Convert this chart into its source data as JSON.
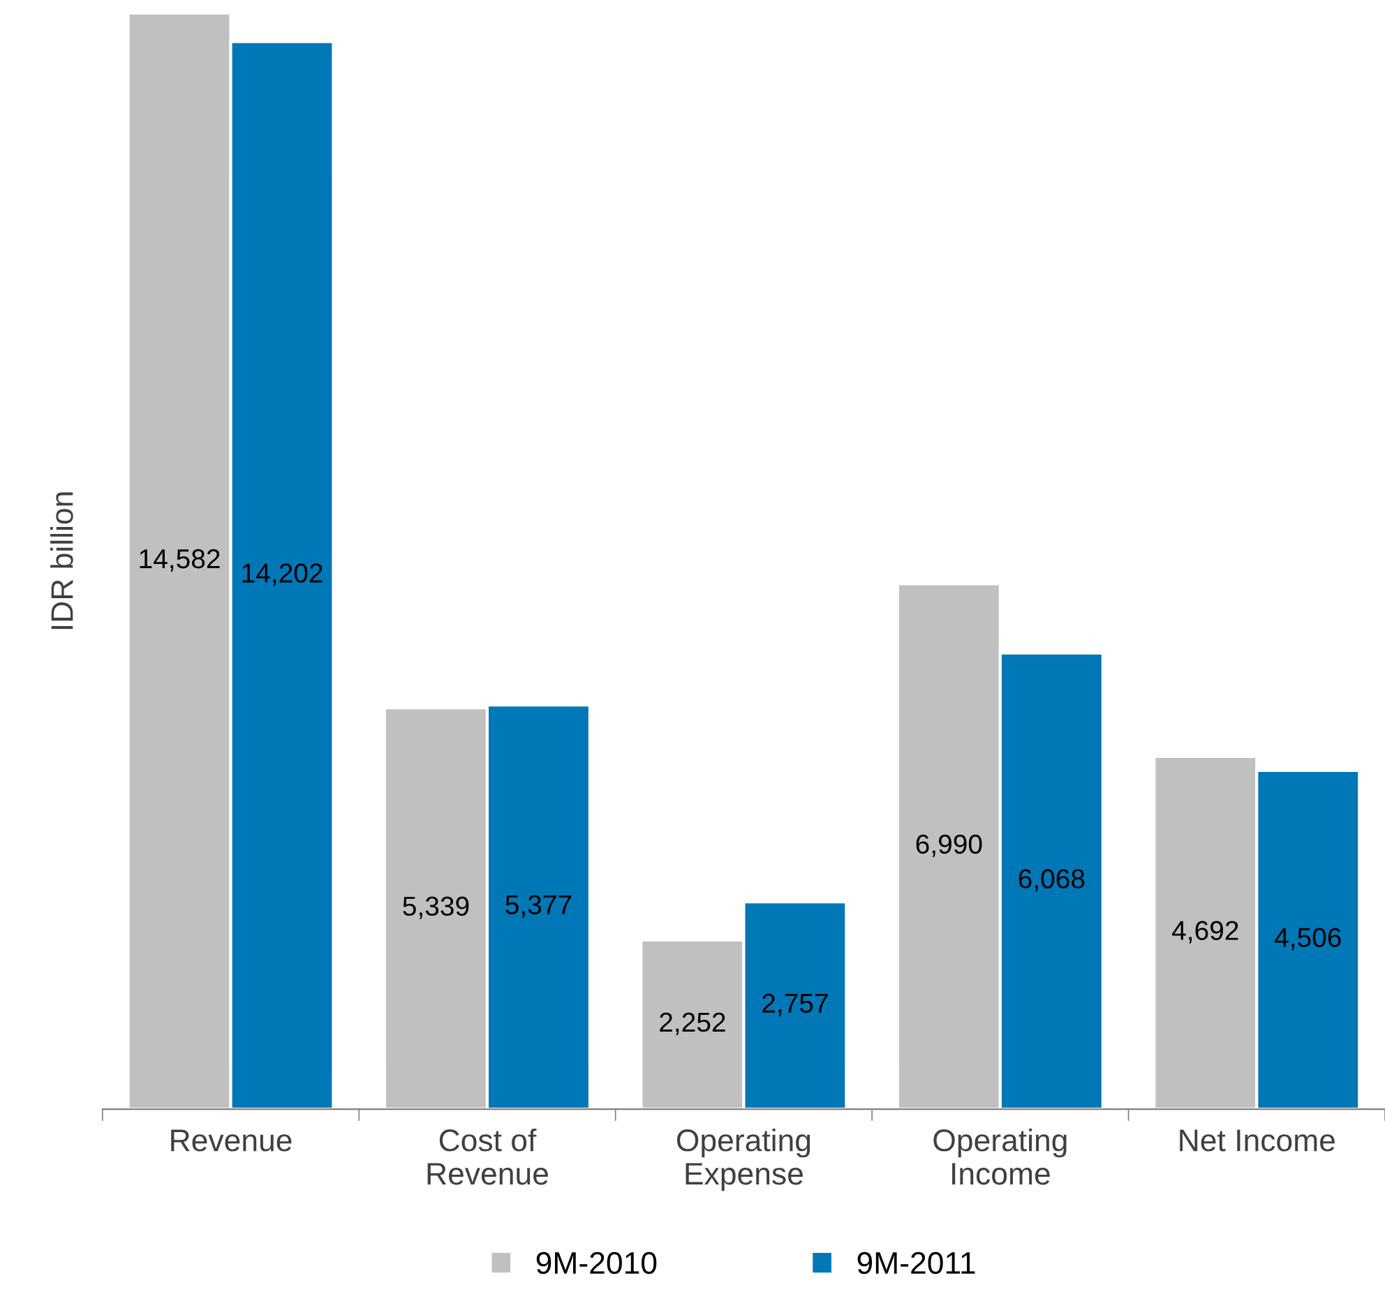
{
  "chart_data": {
    "type": "bar",
    "ylabel": "IDR billion",
    "categories": [
      "Revenue",
      "Cost of\nRevenue",
      "Operating\nExpense",
      "Operating\nIncome",
      "Net Income"
    ],
    "series": [
      {
        "name": "9M-2010",
        "color": "#c0c0c0",
        "values": [
          14582,
          5339,
          2252,
          6990,
          4692
        ],
        "value_labels": [
          "14,582",
          "5,339",
          "2,252",
          "6,990",
          "4,692"
        ]
      },
      {
        "name": "9M-2011",
        "color": "#0077b6",
        "values": [
          14202,
          5377,
          2757,
          6068,
          4506
        ],
        "value_labels": [
          "14,202",
          "5,377",
          "2,757",
          "6,068",
          "4,506"
        ]
      }
    ],
    "legend": "bottom",
    "grid": false,
    "tick_labels": "x"
  }
}
